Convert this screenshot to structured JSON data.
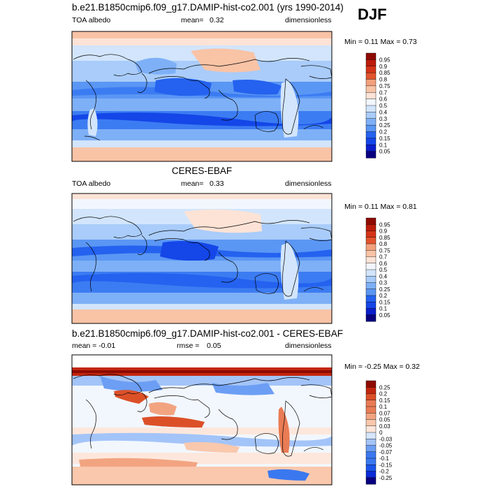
{
  "season": "DJF",
  "palette": {
    "std": [
      "#08007f",
      "#0b1ecc",
      "#1446e8",
      "#2462ef",
      "#3c7cf2",
      "#5a96f4",
      "#7eb0f7",
      "#a9ccfa",
      "#d2e5fc",
      "#f2f7fe",
      "#fde3d6",
      "#f9c3a6",
      "#f3a07c",
      "#ec7a52",
      "#e2542e",
      "#d43418",
      "#bc1c0b",
      "#8e0a03"
    ],
    "diff": [
      "#08007f",
      "#0b2cd6",
      "#1a54ea",
      "#3a78f0",
      "#6c9ef4",
      "#a3c4f8",
      "#d6e6fc",
      "#fde7dc",
      "#f9c8ad",
      "#f2a481",
      "#e97c55",
      "#dc5028",
      "#c2260e",
      "#8e0a03"
    ]
  },
  "panels": [
    {
      "title": "b.e21.B1850cmip6.f09_g17.DAMIP-hist-co2.001 (yrs 1990-2014)",
      "left": "TOA albedo",
      "mean_label": "mean=",
      "mean_value": "0.32",
      "units": "dimensionless",
      "minmax": "Min =  0.11 Max =  0.73"
    },
    {
      "title": "CERES-EBAF",
      "left": "TOA albedo",
      "mean_label": "mean=",
      "mean_value": "0.33",
      "units": "dimensionless",
      "minmax": "Min =  0.11 Max =  0.81"
    },
    {
      "title": "b.e21.B1850cmip6.f09_g17.DAMIP-hist-co2.001 - CERES-EBAF",
      "left": "mean =  -0.01",
      "mean_label": "rmse =",
      "mean_value": "0.05",
      "units": "dimensionless",
      "minmax": "Min =  -0.25 Max =  0.32"
    }
  ],
  "chart_data": [
    {
      "type": "heatmap",
      "title": "b.e21.B1850cmip6.f09_g17.DAMIP-hist-co2.001 (yrs 1990-2014)",
      "variable": "TOA albedo",
      "units": "dimensionless",
      "mean": 0.32,
      "min": 0.11,
      "max": 0.73,
      "colorbar_levels": [
        "0.95",
        "0.9",
        "0.85",
        "0.8",
        "0.75",
        "0.7",
        "0.6",
        "0.5",
        "0.4",
        "0.3",
        "0.25",
        "0.2",
        "0.15",
        "0.1",
        "0.05"
      ]
    },
    {
      "type": "heatmap",
      "title": "CERES-EBAF",
      "variable": "TOA albedo",
      "units": "dimensionless",
      "mean": 0.33,
      "min": 0.11,
      "max": 0.81,
      "colorbar_levels": [
        "0.95",
        "0.9",
        "0.85",
        "0.8",
        "0.75",
        "0.7",
        "0.6",
        "0.5",
        "0.4",
        "0.3",
        "0.25",
        "0.2",
        "0.15",
        "0.1",
        "0.05"
      ]
    },
    {
      "type": "heatmap",
      "title": "b.e21.B1850cmip6.f09_g17.DAMIP-hist-co2.001 - CERES-EBAF",
      "units": "dimensionless",
      "mean": -0.01,
      "rmse": 0.05,
      "min": -0.25,
      "max": 0.32,
      "colorbar_levels": [
        "0.25",
        "0.2",
        "0.15",
        "0.1",
        "0.07",
        "0.05",
        "0.03",
        "0",
        "-0.03",
        "-0.05",
        "-0.07",
        "-0.1",
        "-0.15",
        "-0.2",
        "-0.25"
      ]
    }
  ]
}
